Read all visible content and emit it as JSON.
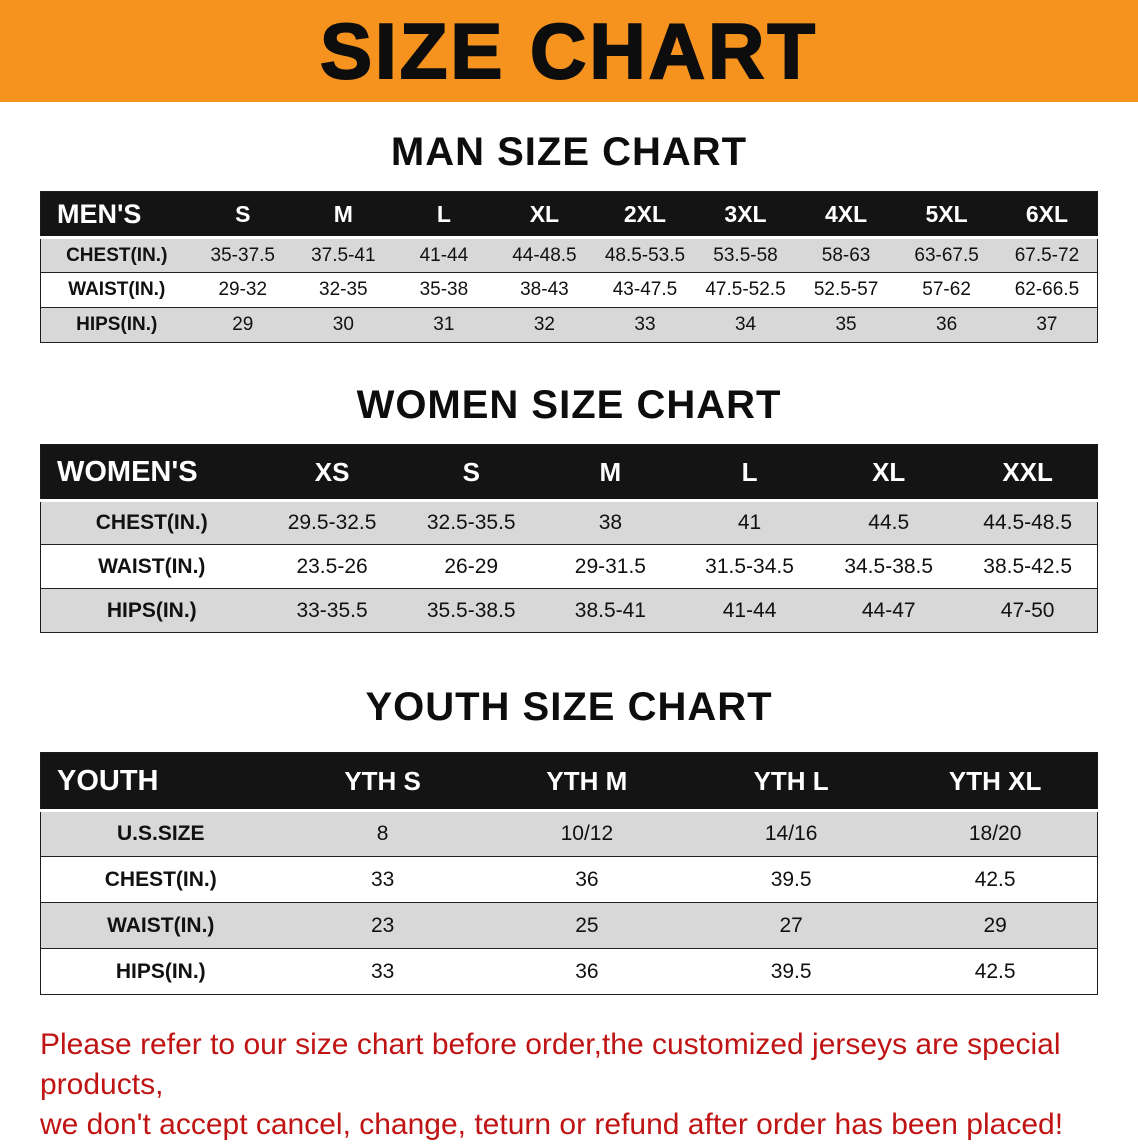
{
  "banner": {
    "title": "SIZE CHART"
  },
  "sections": [
    {
      "heading": "MAN SIZE CHART",
      "table": {
        "header": [
          "MEN'S",
          "S",
          "M",
          "L",
          "XL",
          "2XL",
          "3XL",
          "4XL",
          "5XL",
          "6XL"
        ],
        "rows": [
          [
            "CHEST(IN.)",
            "35-37.5",
            "37.5-41",
            "41-44",
            "44-48.5",
            "48.5-53.5",
            "53.5-58",
            "58-63",
            "63-67.5",
            "67.5-72"
          ],
          [
            "WAIST(IN.)",
            "29-32",
            "32-35",
            "35-38",
            "38-43",
            "43-47.5",
            "47.5-52.5",
            "52.5-57",
            "57-62",
            "62-66.5"
          ],
          [
            "HIPS(IN.)",
            "29",
            "30",
            "31",
            "32",
            "33",
            "34",
            "35",
            "36",
            "37"
          ]
        ]
      }
    },
    {
      "heading": "WOMEN SIZE CHART",
      "table": {
        "header": [
          "WOMEN'S",
          "XS",
          "S",
          "M",
          "L",
          "XL",
          "XXL"
        ],
        "rows": [
          [
            "CHEST(IN.)",
            "29.5-32.5",
            "32.5-35.5",
            "38",
            "41",
            "44.5",
            "44.5-48.5"
          ],
          [
            "WAIST(IN.)",
            "23.5-26",
            "26-29",
            "29-31.5",
            "31.5-34.5",
            "34.5-38.5",
            "38.5-42.5"
          ],
          [
            "HIPS(IN.)",
            "33-35.5",
            "35.5-38.5",
            "38.5-41",
            "41-44",
            "44-47",
            "47-50"
          ]
        ]
      }
    },
    {
      "heading": "YOUTH SIZE CHART",
      "table": {
        "header": [
          "YOUTH",
          "YTH S",
          "YTH M",
          "YTH L",
          "YTH XL"
        ],
        "rows": [
          [
            "U.S.SIZE",
            "8",
            "10/12",
            "14/16",
            "18/20"
          ],
          [
            "CHEST(IN.)",
            "33",
            "36",
            "39.5",
            "42.5"
          ],
          [
            "WAIST(IN.)",
            "23",
            "25",
            "27",
            "29"
          ],
          [
            "HIPS(IN.)",
            "33",
            "36",
            "39.5",
            "42.5"
          ]
        ]
      }
    }
  ],
  "footer": {
    "line1": "Please refer to our size chart before order,the customized jerseys are special products,",
    "line2": "we don't accept cancel, change, teturn or refund after order has been placed!"
  },
  "colors": {
    "banner_bg": "#f6921e",
    "table_header_bg": "#141414",
    "row_alt_bg": "#d8d8d8",
    "notice_text": "#c01414"
  }
}
